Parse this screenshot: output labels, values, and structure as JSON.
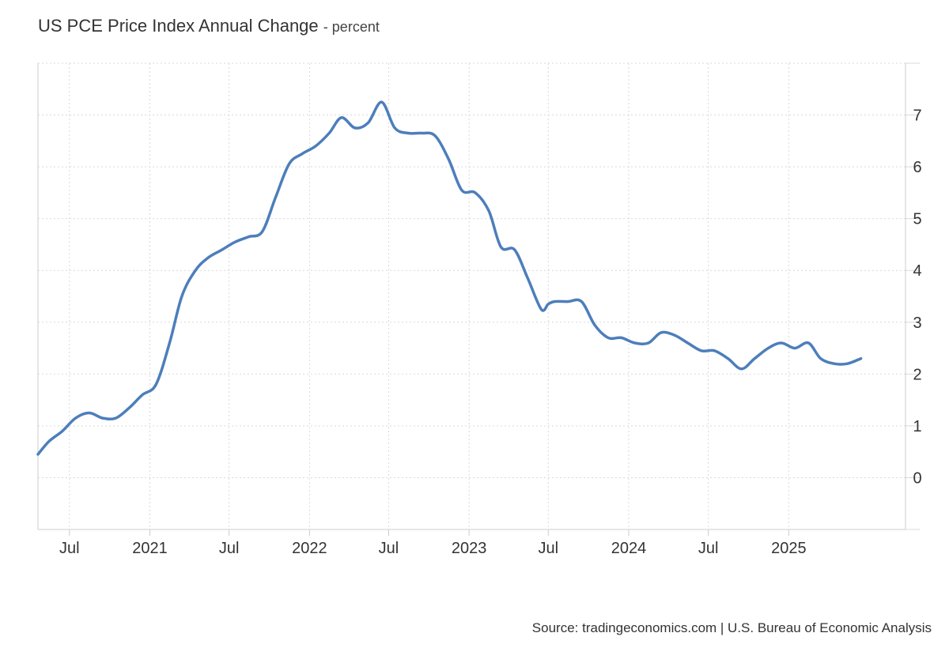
{
  "title": "US PCE Price Index Annual Change",
  "title_separator": "-",
  "unit": "percent",
  "source": "Source: tradingeconomics.com | U.S. Bureau of Economic Analysis",
  "colors": {
    "line": "#4d7ebb",
    "grid": "#d9d9d9",
    "axis": "#cccccc"
  },
  "chart_data": {
    "type": "line",
    "title": "US PCE Price Index Annual Change",
    "unit": "percent",
    "xlabel": "",
    "ylabel": "",
    "yaxis_position": "right",
    "ylim": [
      -1,
      8
    ],
    "yticks": [
      0,
      1,
      2,
      3,
      4,
      5,
      6,
      7
    ],
    "xlim": [
      "2020-04-20",
      "2025-09-25"
    ],
    "xticks": [
      {
        "date": "2020-07-01",
        "label": "Jul"
      },
      {
        "date": "2021-01-01",
        "label": "2021"
      },
      {
        "date": "2021-07-01",
        "label": "Jul"
      },
      {
        "date": "2022-01-01",
        "label": "2022"
      },
      {
        "date": "2022-07-01",
        "label": "Jul"
      },
      {
        "date": "2023-01-01",
        "label": "2023"
      },
      {
        "date": "2023-07-01",
        "label": "Jul"
      },
      {
        "date": "2024-01-01",
        "label": "2024"
      },
      {
        "date": "2024-07-01",
        "label": "Jul"
      },
      {
        "date": "2025-01-01",
        "label": "2025"
      }
    ],
    "grid": true,
    "legend": "none",
    "series": [
      {
        "points": [
          [
            "2020-04-20",
            0.45
          ],
          [
            "2020-05-15",
            0.7
          ],
          [
            "2020-06-15",
            0.9
          ],
          [
            "2020-07-15",
            1.15
          ],
          [
            "2020-08-15",
            1.25
          ],
          [
            "2020-09-15",
            1.15
          ],
          [
            "2020-10-15",
            1.15
          ],
          [
            "2020-11-15",
            1.35
          ],
          [
            "2020-12-15",
            1.6
          ],
          [
            "2021-01-15",
            1.8
          ],
          [
            "2021-02-15",
            2.6
          ],
          [
            "2021-03-15",
            3.5
          ],
          [
            "2021-04-15",
            4.0
          ],
          [
            "2021-05-15",
            4.25
          ],
          [
            "2021-06-15",
            4.4
          ],
          [
            "2021-07-15",
            4.55
          ],
          [
            "2021-08-15",
            4.65
          ],
          [
            "2021-09-15",
            4.75
          ],
          [
            "2021-10-15",
            5.4
          ],
          [
            "2021-11-15",
            6.05
          ],
          [
            "2021-12-15",
            6.25
          ],
          [
            "2022-01-15",
            6.4
          ],
          [
            "2022-02-15",
            6.65
          ],
          [
            "2022-03-15",
            6.95
          ],
          [
            "2022-04-15",
            6.75
          ],
          [
            "2022-05-15",
            6.85
          ],
          [
            "2022-06-15",
            7.25
          ],
          [
            "2022-07-15",
            6.75
          ],
          [
            "2022-08-15",
            6.65
          ],
          [
            "2022-09-15",
            6.65
          ],
          [
            "2022-10-15",
            6.6
          ],
          [
            "2022-11-15",
            6.15
          ],
          [
            "2022-12-15",
            5.55
          ],
          [
            "2023-01-15",
            5.5
          ],
          [
            "2023-02-15",
            5.15
          ],
          [
            "2023-03-15",
            4.45
          ],
          [
            "2023-04-15",
            4.4
          ],
          [
            "2023-05-15",
            3.85
          ],
          [
            "2023-06-15",
            3.25
          ],
          [
            "2023-07-01",
            3.35
          ],
          [
            "2023-07-15",
            3.4
          ],
          [
            "2023-08-15",
            3.4
          ],
          [
            "2023-09-15",
            3.4
          ],
          [
            "2023-10-15",
            2.95
          ],
          [
            "2023-11-15",
            2.7
          ],
          [
            "2023-12-15",
            2.7
          ],
          [
            "2024-01-15",
            2.6
          ],
          [
            "2024-02-15",
            2.6
          ],
          [
            "2024-03-15",
            2.8
          ],
          [
            "2024-04-15",
            2.75
          ],
          [
            "2024-05-15",
            2.6
          ],
          [
            "2024-06-15",
            2.45
          ],
          [
            "2024-07-15",
            2.45
          ],
          [
            "2024-08-15",
            2.3
          ],
          [
            "2024-09-15",
            2.1
          ],
          [
            "2024-10-15",
            2.3
          ],
          [
            "2024-11-15",
            2.5
          ],
          [
            "2024-12-15",
            2.6
          ],
          [
            "2025-01-15",
            2.5
          ],
          [
            "2025-02-15",
            2.6
          ],
          [
            "2025-03-15",
            2.3
          ],
          [
            "2025-04-15",
            2.2
          ],
          [
            "2025-05-15",
            2.2
          ],
          [
            "2025-06-15",
            2.3
          ]
        ]
      }
    ]
  }
}
